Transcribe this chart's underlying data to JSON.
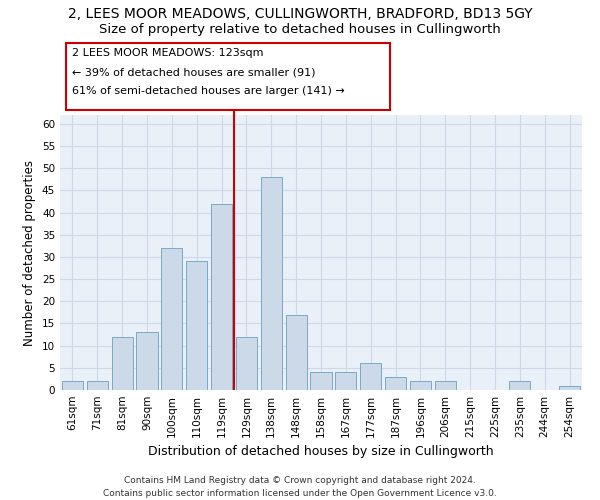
{
  "title_line1": "2, LEES MOOR MEADOWS, CULLINGWORTH, BRADFORD, BD13 5GY",
  "title_line2": "Size of property relative to detached houses in Cullingworth",
  "xlabel": "Distribution of detached houses by size in Cullingworth",
  "ylabel": "Number of detached properties",
  "categories": [
    "61sqm",
    "71sqm",
    "81sqm",
    "90sqm",
    "100sqm",
    "110sqm",
    "119sqm",
    "129sqm",
    "138sqm",
    "148sqm",
    "158sqm",
    "167sqm",
    "177sqm",
    "187sqm",
    "196sqm",
    "206sqm",
    "215sqm",
    "225sqm",
    "235sqm",
    "244sqm",
    "254sqm"
  ],
  "values": [
    2,
    2,
    12,
    13,
    32,
    29,
    42,
    12,
    48,
    17,
    4,
    4,
    6,
    3,
    2,
    2,
    0,
    0,
    2,
    0,
    1
  ],
  "bar_color": "#ccd9e8",
  "bar_edge_color": "#7aaac8",
  "vline_x": 6.5,
  "vline_color": "#cc0000",
  "annotation_line1": "2 LEES MOOR MEADOWS: 123sqm",
  "annotation_line2": "← 39% of detached houses are smaller (91)",
  "annotation_line3": "61% of semi-detached houses are larger (141) →",
  "annotation_box_color": "#ffffff",
  "annotation_box_edge": "#cc0000",
  "ylim": [
    0,
    62
  ],
  "yticks": [
    0,
    5,
    10,
    15,
    20,
    25,
    30,
    35,
    40,
    45,
    50,
    55,
    60
  ],
  "grid_color": "#d0d8e8",
  "background_color": "#eaf0f8",
  "footer_line1": "Contains HM Land Registry data © Crown copyright and database right 2024.",
  "footer_line2": "Contains public sector information licensed under the Open Government Licence v3.0.",
  "title1_fontsize": 10,
  "title2_fontsize": 9.5,
  "xlabel_fontsize": 9,
  "ylabel_fontsize": 8.5,
  "tick_fontsize": 7.5,
  "annotation_fontsize": 8,
  "footer_fontsize": 6.5
}
